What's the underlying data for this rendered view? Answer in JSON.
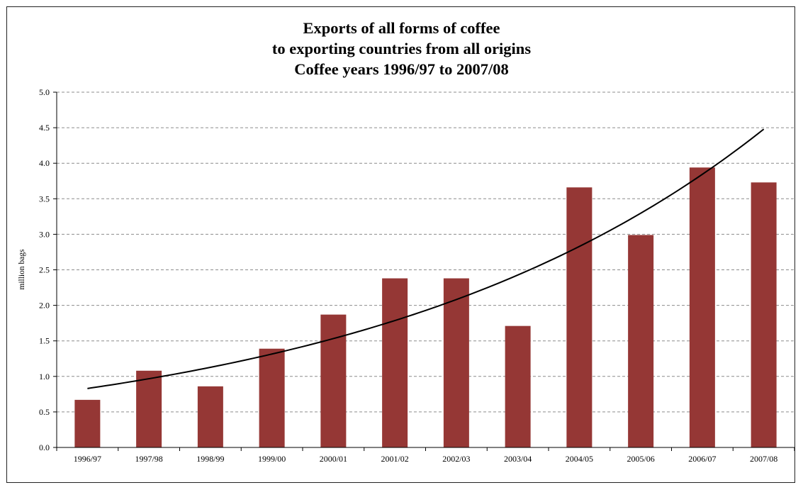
{
  "chart_data": {
    "type": "bar",
    "title_lines": [
      "Exports of all forms of coffee",
      "to exporting countries from all origins",
      "Coffee years  1996/97 to 2007/08"
    ],
    "xlabel": "",
    "ylabel": "million bags",
    "ylim": [
      0,
      5
    ],
    "yticks": [
      "0.0",
      "0.5",
      "1.0",
      "1.5",
      "2.0",
      "2.5",
      "3.0",
      "3.5",
      "4.0",
      "4.5",
      "5.0"
    ],
    "categories": [
      "1996/97",
      "1997/98",
      "1998/99",
      "1999/00",
      "2000/01",
      "2001/02",
      "2002/03",
      "2003/04",
      "2004/05",
      "2005/06",
      "2006/07",
      "2007/08"
    ],
    "series": [
      {
        "values": [
          0.67,
          1.08,
          0.86,
          1.39,
          1.87,
          2.38,
          2.38,
          1.71,
          3.66,
          2.99,
          3.94,
          3.73
        ]
      }
    ],
    "trendline": {
      "type": "exponential",
      "start": 0.83,
      "end": 4.48
    },
    "grid": true,
    "grid_style": "dashed",
    "bar_color": "#953735",
    "trend_color": "#000000"
  }
}
